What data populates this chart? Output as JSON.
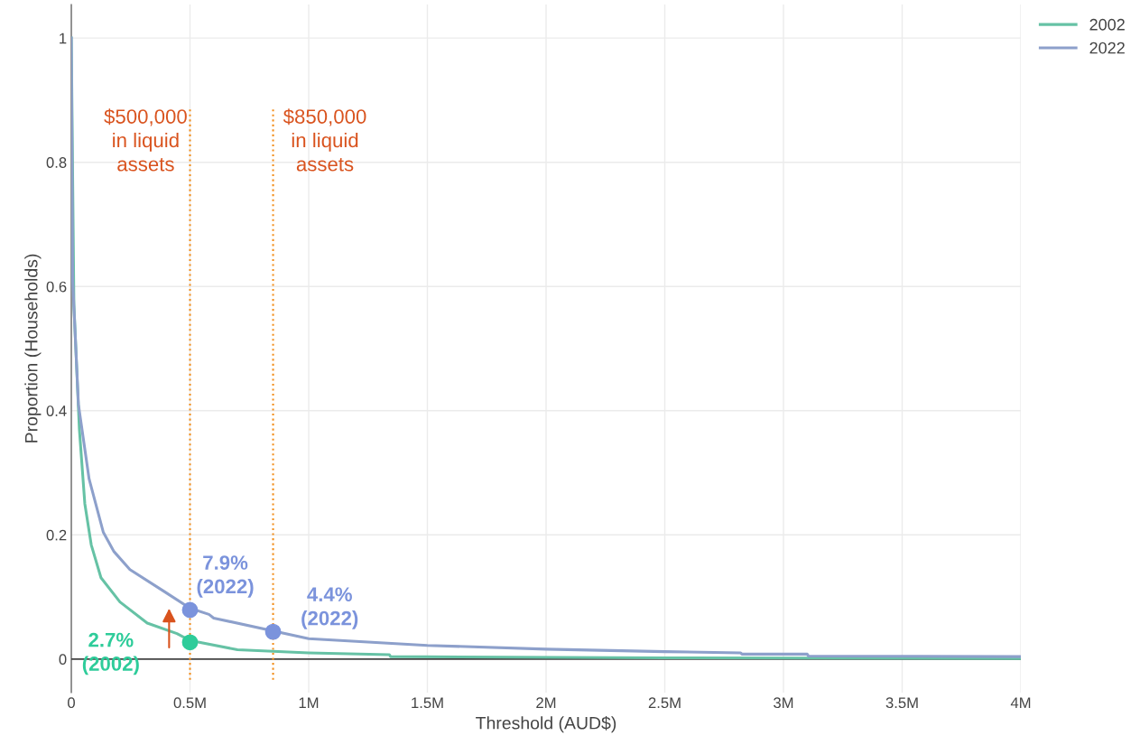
{
  "chart_data": {
    "type": "line",
    "xlabel": "Threshold (AUD$)",
    "ylabel": "Proportion (Households)",
    "xlim": [
      0,
      4000000
    ],
    "ylim": [
      -0.054,
      1.054
    ],
    "xticks": [
      0,
      {
        "value": 500000,
        "label": "0.5M"
      },
      {
        "value": 1000000,
        "label": "1M"
      },
      {
        "value": 1500000,
        "label": "1.5M"
      },
      {
        "value": 2000000,
        "label": "2M"
      },
      {
        "value": 2500000,
        "label": "2.5M"
      },
      {
        "value": 3000000,
        "label": "3M"
      },
      {
        "value": 3500000,
        "label": "3.5M"
      },
      {
        "value": 4000000,
        "label": "4M"
      }
    ],
    "yticks": [
      0,
      0.2,
      0.4,
      0.6,
      0.8,
      1
    ],
    "grid": true,
    "legend": "top right",
    "series": [
      {
        "name": "2002",
        "color": "#66c2a5",
        "x": [
          0,
          11000,
          34000,
          57000,
          84000,
          125000,
          205000,
          320000,
          445000,
          500000,
          700000,
          1000000,
          1340000,
          1345000,
          2500000,
          4000000
        ],
        "values": [
          1,
          0.57,
          0.37,
          0.25,
          0.184,
          0.131,
          0.092,
          0.058,
          0.041,
          0.03,
          0.015,
          0.01,
          0.007,
          0.004,
          0.002,
          0.001
        ]
      },
      {
        "name": "2022",
        "color": "#8da0cb",
        "x": [
          0,
          6000,
          30000,
          75000,
          135000,
          180000,
          247000,
          395000,
          500000,
          580000,
          600000,
          1000000,
          1500000,
          2000000,
          2500000,
          2820000,
          2825000,
          3100000,
          3105000,
          4000000
        ],
        "values": [
          1,
          0.608,
          0.41,
          0.29,
          0.204,
          0.173,
          0.144,
          0.108,
          0.082,
          0.072,
          0.066,
          0.033,
          0.022,
          0.016,
          0.012,
          0.01,
          0.008,
          0.008,
          0.005,
          0.004
        ]
      },
      {
        "type": "scatter",
        "color": "#7b93dc",
        "marker": "circle",
        "x": [
          500000,
          850000
        ],
        "values": [
          0.079,
          0.044
        ]
      },
      {
        "type": "scatter",
        "color": "#2ecc9a",
        "marker": "circle",
        "x": [
          500000
        ],
        "values": [
          0.027
        ]
      }
    ],
    "ref_lines": [
      {
        "axis": "x",
        "value": 500000,
        "label": "$500,000\nin liquid\nassets",
        "color": "#f28e1c",
        "line_style": "dotted"
      },
      {
        "axis": "x",
        "value": 850000,
        "label": "$850,000\nin liquid\nassets",
        "color": "#f28e1c",
        "line_style": "dotted"
      }
    ],
    "annotations": [
      "7.9%\n(2022)",
      "4.4%\n(2022)",
      "2.7%\n(2002)"
    ]
  }
}
